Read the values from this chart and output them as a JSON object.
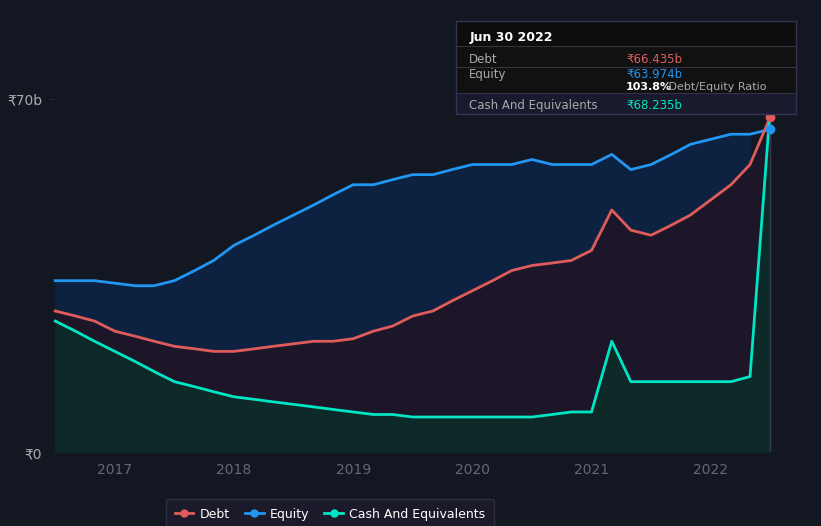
{
  "bg_color": "#131722",
  "plot_bg_color": "#131722",
  "grid_color": "#2a2e39",
  "debt_color": "#e05c5c",
  "equity_color": "#2196f3",
  "cash_color": "#00e5c4",
  "ylabel_top": "₹70b",
  "ylabel_bottom": "₹0",
  "x_years": [
    2016.5,
    2016.67,
    2016.83,
    2017.0,
    2017.17,
    2017.33,
    2017.5,
    2017.67,
    2017.83,
    2018.0,
    2018.17,
    2018.33,
    2018.5,
    2018.67,
    2018.83,
    2019.0,
    2019.17,
    2019.33,
    2019.5,
    2019.67,
    2019.83,
    2020.0,
    2020.17,
    2020.33,
    2020.5,
    2020.67,
    2020.83,
    2021.0,
    2021.17,
    2021.33,
    2021.5,
    2021.67,
    2021.83,
    2022.0,
    2022.17,
    2022.33,
    2022.5
  ],
  "debt": [
    28,
    27,
    26,
    24,
    23,
    22,
    21,
    20.5,
    20,
    20,
    20.5,
    21,
    21.5,
    22,
    22,
    22.5,
    24,
    25,
    27,
    28,
    30,
    32,
    34,
    36,
    37,
    37.5,
    38,
    40,
    48,
    44,
    43,
    45,
    47,
    50,
    53,
    57,
    66.435
  ],
  "equity": [
    34,
    34,
    34,
    33.5,
    33,
    33,
    34,
    36,
    38,
    41,
    43,
    45,
    47,
    49,
    51,
    53,
    53,
    54,
    55,
    55,
    56,
    57,
    57,
    57,
    58,
    57,
    57,
    57,
    59,
    56,
    57,
    59,
    61,
    62,
    63,
    63,
    63.974
  ],
  "cash": [
    26,
    24,
    22,
    20,
    18,
    16,
    14,
    13,
    12,
    11,
    10.5,
    10,
    9.5,
    9,
    8.5,
    8,
    7.5,
    7.5,
    7,
    7,
    7,
    7,
    7,
    7,
    7,
    7.5,
    8,
    8,
    22,
    14,
    14,
    14,
    14,
    14,
    14,
    15,
    68.235
  ],
  "ylim": [
    0,
    75
  ],
  "xtick_years": [
    2017,
    2018,
    2019,
    2020,
    2021,
    2022
  ],
  "legend_labels": [
    "Debt",
    "Equity",
    "Cash And Equivalents"
  ],
  "legend_colors": [
    "#e05c5c",
    "#2196f3",
    "#00e5c4"
  ],
  "title": "Jun 30 2022",
  "debt_value": "₹66.435b",
  "equity_value": "₹63.974b",
  "cash_value": "₹68.235b",
  "ratio_text": "103.8%",
  "ratio_suffix": " Debt/Equity Ratio"
}
